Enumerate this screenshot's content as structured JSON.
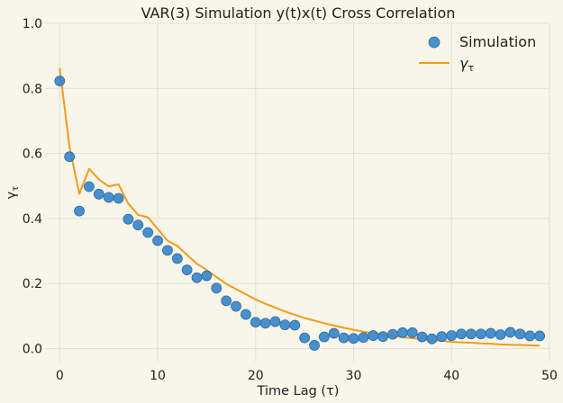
{
  "chart_data": {
    "type": "scatter",
    "title": "VAR(3) Simulation y(t)x(t) Cross Correlation",
    "xlabel": "Time Lag (τ)",
    "ylabel": "γτ",
    "xlim": [
      -1.5,
      50
    ],
    "ylim": [
      -0.04,
      1.0
    ],
    "xticks": [
      0,
      10,
      20,
      30,
      40,
      50
    ],
    "yticks": [
      0.0,
      0.2,
      0.4,
      0.6,
      0.8,
      1.0
    ],
    "grid": true,
    "legend_position": "top-right",
    "series": [
      {
        "name": "Simulation",
        "kind": "scatter",
        "color": "#3a86c8",
        "x": [
          0,
          1,
          2,
          3,
          4,
          5,
          6,
          7,
          8,
          9,
          10,
          11,
          12,
          13,
          14,
          15,
          16,
          17,
          18,
          19,
          20,
          21,
          22,
          23,
          24,
          25,
          26,
          27,
          28,
          29,
          30,
          31,
          32,
          33,
          34,
          35,
          36,
          37,
          38,
          39,
          40,
          41,
          42,
          43,
          44,
          45,
          46,
          47,
          48,
          49
        ],
        "y": [
          0.823,
          0.59,
          0.423,
          0.498,
          0.475,
          0.465,
          0.462,
          0.398,
          0.38,
          0.357,
          0.332,
          0.302,
          0.277,
          0.242,
          0.218,
          0.224,
          0.186,
          0.147,
          0.13,
          0.105,
          0.081,
          0.078,
          0.083,
          0.073,
          0.072,
          0.033,
          0.01,
          0.036,
          0.047,
          0.033,
          0.031,
          0.034,
          0.04,
          0.037,
          0.044,
          0.049,
          0.049,
          0.036,
          0.03,
          0.037,
          0.04,
          0.045,
          0.045,
          0.045,
          0.047,
          0.043,
          0.05,
          0.045,
          0.039,
          0.039
        ]
      },
      {
        "name": "γτ",
        "kind": "line",
        "color": "#f59b1c",
        "x": [
          0,
          1,
          2,
          3,
          4,
          5,
          6,
          7,
          8,
          9,
          10,
          11,
          12,
          13,
          14,
          15,
          16,
          17,
          18,
          19,
          20,
          21,
          22,
          23,
          24,
          25,
          26,
          27,
          28,
          29,
          30,
          31,
          32,
          33,
          34,
          35,
          36,
          37,
          38,
          39,
          40,
          41,
          42,
          43,
          44,
          45,
          46,
          47,
          48,
          49
        ],
        "y": [
          0.862,
          0.62,
          0.476,
          0.553,
          0.52,
          0.499,
          0.505,
          0.446,
          0.411,
          0.404,
          0.368,
          0.332,
          0.316,
          0.288,
          0.261,
          0.242,
          0.22,
          0.199,
          0.183,
          0.167,
          0.151,
          0.138,
          0.126,
          0.114,
          0.104,
          0.094,
          0.086,
          0.078,
          0.071,
          0.064,
          0.058,
          0.052,
          0.047,
          0.043,
          0.039,
          0.035,
          0.032,
          0.029,
          0.026,
          0.024,
          0.021,
          0.019,
          0.018,
          0.016,
          0.015,
          0.013,
          0.012,
          0.011,
          0.01,
          0.009
        ]
      }
    ]
  }
}
